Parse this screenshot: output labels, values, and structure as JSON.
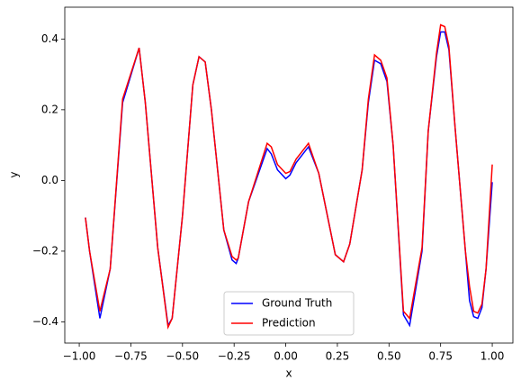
{
  "chart_data": {
    "type": "line",
    "xlabel": "x",
    "ylabel": "y",
    "x": [
      -0.97,
      -0.95,
      -0.9,
      -0.85,
      -0.79,
      -0.71,
      -0.68,
      -0.62,
      -0.57,
      -0.55,
      -0.5,
      -0.45,
      -0.42,
      -0.39,
      -0.36,
      -0.3,
      -0.26,
      -0.24,
      -0.23,
      -0.18,
      -0.09,
      -0.07,
      -0.04,
      0.0,
      0.02,
      0.05,
      0.11,
      0.16,
      0.24,
      0.28,
      0.31,
      0.37,
      0.4,
      0.43,
      0.46,
      0.49,
      0.52,
      0.57,
      0.6,
      0.66,
      0.69,
      0.73,
      0.75,
      0.77,
      0.79,
      0.82,
      0.87,
      0.89,
      0.91,
      0.93,
      0.95,
      0.97,
      1.0
    ],
    "series": [
      {
        "name": "Ground Truth",
        "color": "#0000ff",
        "values": [
          -0.105,
          -0.2,
          -0.39,
          -0.25,
          0.22,
          0.375,
          0.22,
          -0.19,
          -0.41,
          -0.39,
          -0.1,
          0.27,
          0.35,
          0.335,
          0.2,
          -0.14,
          -0.225,
          -0.235,
          -0.22,
          -0.06,
          0.09,
          0.075,
          0.03,
          0.005,
          0.015,
          0.05,
          0.095,
          0.02,
          -0.21,
          -0.23,
          -0.18,
          0.03,
          0.22,
          0.34,
          0.33,
          0.28,
          0.1,
          -0.38,
          -0.41,
          -0.2,
          0.14,
          0.35,
          0.42,
          0.42,
          0.37,
          0.15,
          -0.2,
          -0.34,
          -0.385,
          -0.39,
          -0.36,
          -0.25,
          -0.005
        ]
      },
      {
        "name": "Prediction",
        "color": "#ff0000",
        "values": [
          -0.105,
          -0.2,
          -0.37,
          -0.25,
          0.23,
          0.375,
          0.22,
          -0.19,
          -0.415,
          -0.39,
          -0.1,
          0.27,
          0.35,
          0.335,
          0.2,
          -0.14,
          -0.215,
          -0.225,
          -0.22,
          -0.06,
          0.105,
          0.095,
          0.045,
          0.02,
          0.025,
          0.06,
          0.105,
          0.02,
          -0.21,
          -0.23,
          -0.18,
          0.03,
          0.23,
          0.355,
          0.34,
          0.29,
          0.1,
          -0.37,
          -0.39,
          -0.19,
          0.14,
          0.36,
          0.44,
          0.435,
          0.38,
          0.15,
          -0.2,
          -0.3,
          -0.37,
          -0.375,
          -0.35,
          -0.25,
          0.045
        ]
      }
    ],
    "xlim": [
      -1.07,
      1.1
    ],
    "ylim": [
      -0.46,
      0.49
    ],
    "xticks": [
      {
        "value": -1,
        "label": "−1.00"
      },
      {
        "value": -0.75,
        "label": "−0.75"
      },
      {
        "value": -0.5,
        "label": "−0.50"
      },
      {
        "value": -0.25,
        "label": "−0.25"
      },
      {
        "value": 0,
        "label": "0.00"
      },
      {
        "value": 0.25,
        "label": "0.25"
      },
      {
        "value": 0.5,
        "label": "0.50"
      },
      {
        "value": 0.75,
        "label": "0.75"
      },
      {
        "value": 1,
        "label": "1.00"
      }
    ],
    "yticks": [
      {
        "value": -0.4,
        "label": "−0.4"
      },
      {
        "value": -0.2,
        "label": "−0.2"
      },
      {
        "value": 0,
        "label": "0.0"
      },
      {
        "value": 0.2,
        "label": "0.2"
      },
      {
        "value": 0.4,
        "label": "0.4"
      }
    ],
    "grid": false,
    "legend": "lower center"
  }
}
